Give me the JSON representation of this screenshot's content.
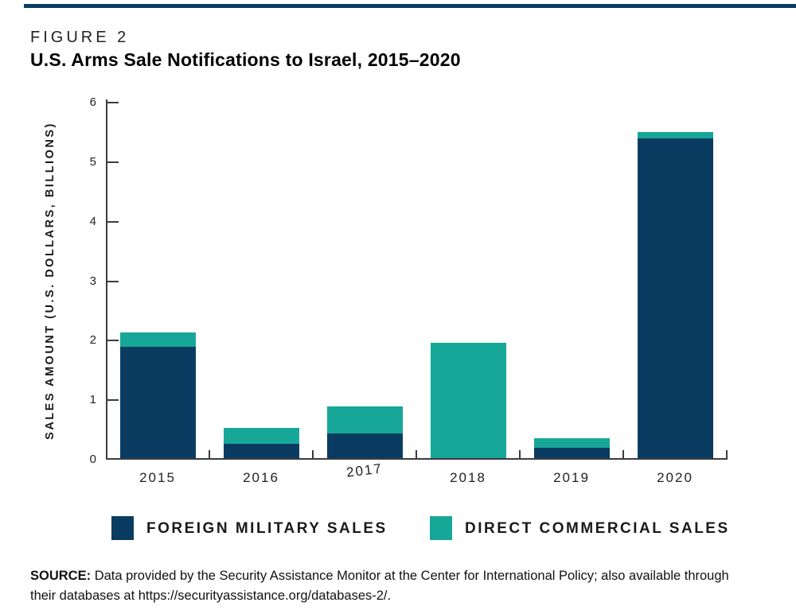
{
  "figure": {
    "label": "FIGURE 2",
    "title": "U.S. Arms Sale Notifications to Israel, 2015–2020"
  },
  "colors": {
    "fms_navy": "#0a3c61",
    "dcs_teal": "#17a798",
    "axis": "#3c3c3c",
    "top_rule": "#0a3c61"
  },
  "chart_data": {
    "type": "bar",
    "stacked": true,
    "categories": [
      "2015",
      "2016",
      "2017",
      "2018",
      "2019",
      "2020"
    ],
    "series": [
      {
        "name": "Foreign Military Sales",
        "color_key": "fms_navy",
        "values": [
          1.9,
          0.27,
          0.44,
          0,
          0.2,
          5.4
        ]
      },
      {
        "name": "Direct Commercial Sales",
        "color_key": "dcs_teal",
        "values": [
          0.24,
          0.27,
          0.45,
          1.97,
          0.16,
          0.11
        ]
      }
    ],
    "title": "U.S. Arms Sale Notifications to Israel, 2015–2020",
    "xlabel": "",
    "ylabel": "SALES AMOUNT (U.S. DOLLARS, BILLIONS)",
    "ylim": [
      0,
      6
    ],
    "yticks": [
      0,
      1,
      2,
      3,
      4,
      5,
      6
    ],
    "grid": false,
    "legend_position": "bottom"
  },
  "legend": {
    "items": [
      {
        "label": "FOREIGN MILITARY SALES",
        "color_key": "fms_navy"
      },
      {
        "label": "DIRECT COMMERCIAL SALES",
        "color_key": "dcs_teal"
      }
    ]
  },
  "source": {
    "prefix": "SOURCE:",
    "line1": "Data provided by the Security Assistance Monitor at the Center for International Policy; also available through",
    "line2": "their databases at https://securityassistance.org/databases-2/."
  }
}
